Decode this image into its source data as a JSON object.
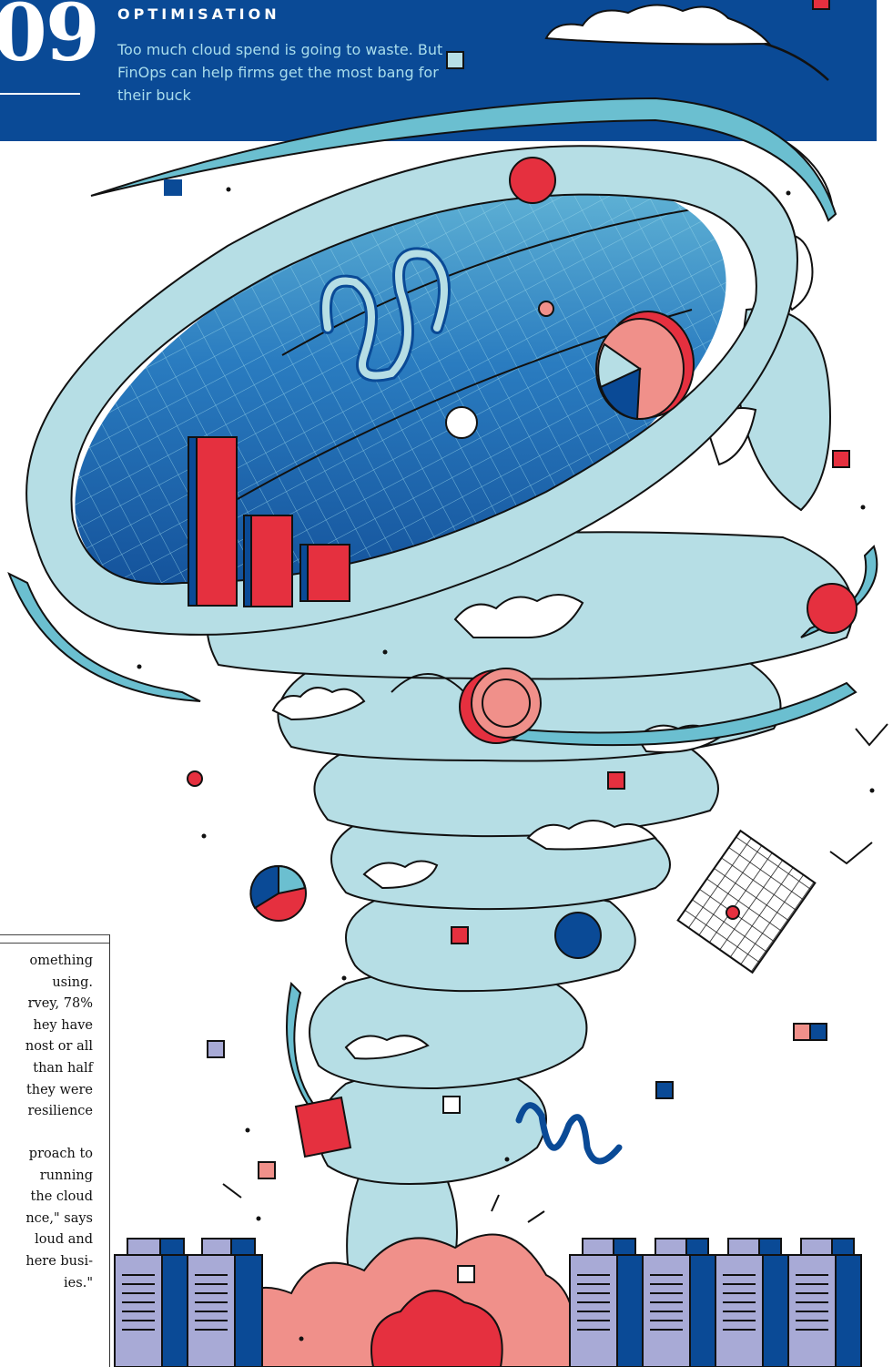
{
  "header": {
    "number": "09",
    "kicker": "OPTIMISATION",
    "standfirst": "Too much cloud spend is going to waste. But FinOps can help firms get the most bang for their buck"
  },
  "article": {
    "para1": "omething\nusing.\nrvey, 78%\nhey have\nnost or all\nthan half\nthey were\nresilience",
    "para2": "proach to\nrunning\nthe cloud\nnce,\" says\nloud and\nhere busi-\nies.\""
  },
  "illustration": {
    "description_icons": [
      "tornado-icon",
      "bar-chart-icon",
      "pie-chart-icon",
      "coin-icon",
      "server-rack-icon",
      "cloud-icon"
    ]
  },
  "colors": {
    "banner": "#0a4a96",
    "tornado": "#b6dee5",
    "red": "#e5303f",
    "salmon": "#f0908a",
    "lavender": "#a8aad6",
    "navy": "#0a4a96"
  }
}
